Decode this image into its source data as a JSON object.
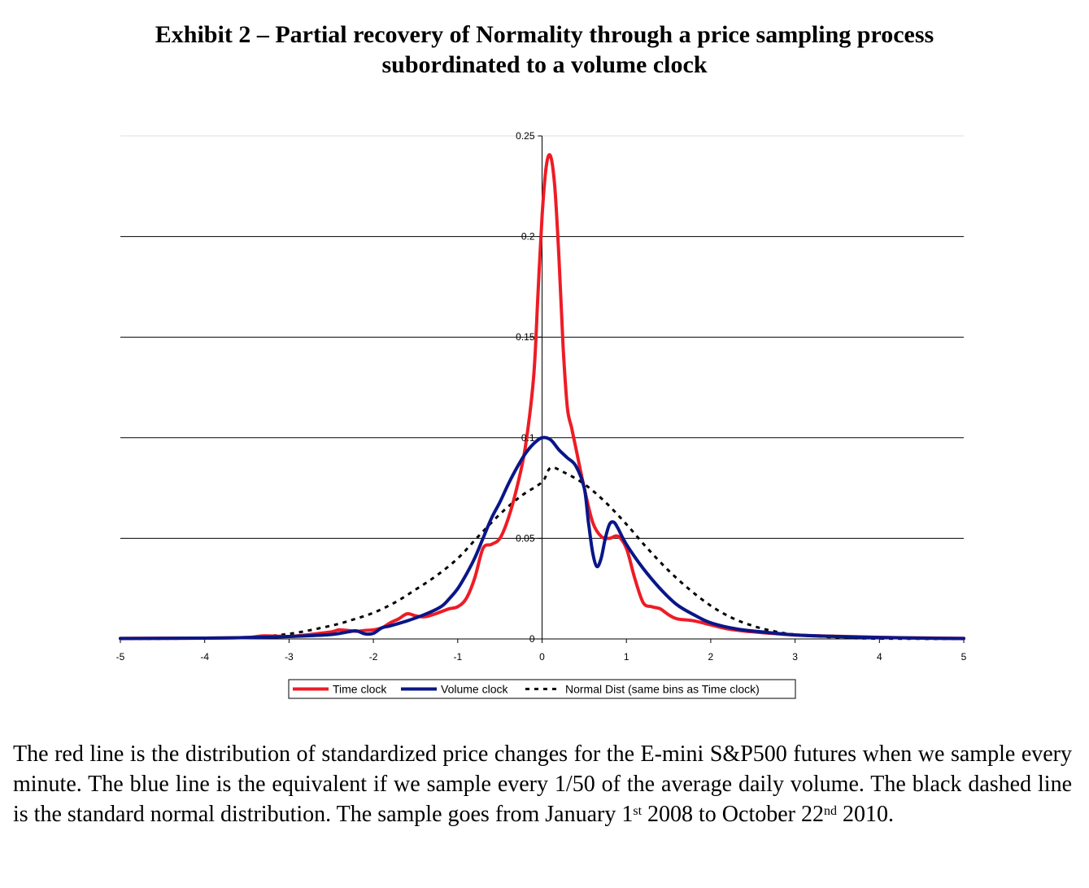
{
  "header": {
    "title_line1": "Exhibit 2 – Partial recovery of Normality through a price sampling process",
    "title_line2": "subordinated to a volume clock"
  },
  "caption": {
    "part1": "The red line is the distribution of standardized price changes for the E-mini S&P500 futures when we sample every minute. The blue line is the equivalent if we sample every 1/50 of the average daily volume. The black dashed line is the standard normal distribution. The sample goes from January 1",
    "sup1": "st",
    "part2": " 2008 to October 22",
    "sup2": "nd",
    "part3": " 2010."
  },
  "colors": {
    "time": "#ee1c25",
    "volume": "#0a1687",
    "normal": "#000000",
    "grid": "#000000"
  },
  "chart_data": {
    "type": "line",
    "xlim": [
      -5,
      5
    ],
    "ylim": [
      0,
      0.25
    ],
    "x_ticks": [
      -5,
      -4,
      -3,
      -2,
      -1,
      0,
      1,
      2,
      3,
      4,
      5
    ],
    "x_tick_labels": [
      "-5",
      "-4",
      "-3",
      "-2",
      "-1",
      "0",
      "1",
      "2",
      "3",
      "4",
      "5"
    ],
    "y_ticks": [
      0,
      0.05,
      0.1,
      0.15,
      0.2,
      0.25
    ],
    "y_tick_labels": [
      "0",
      "0.05",
      "0.1",
      "0.15",
      "0.2",
      "0.25"
    ],
    "grid": "horizontal",
    "legend_position": "bottom",
    "series": [
      {
        "name": "Time clock",
        "style": "solid",
        "color": "#ee1c25",
        "points": [
          [
            -5,
            0.0003
          ],
          [
            -4,
            0.0004
          ],
          [
            -3.5,
            0.0007
          ],
          [
            -3.3,
            0.0015
          ],
          [
            -3,
            0.0012
          ],
          [
            -2.8,
            0.002
          ],
          [
            -2.5,
            0.0035
          ],
          [
            -2.4,
            0.0045
          ],
          [
            -2.2,
            0.0038
          ],
          [
            -2.1,
            0.0042
          ],
          [
            -2,
            0.0045
          ],
          [
            -1.9,
            0.0055
          ],
          [
            -1.8,
            0.008
          ],
          [
            -1.7,
            0.01
          ],
          [
            -1.6,
            0.0125
          ],
          [
            -1.5,
            0.0115
          ],
          [
            -1.4,
            0.011
          ],
          [
            -1.3,
            0.012
          ],
          [
            -1.2,
            0.0135
          ],
          [
            -1.1,
            0.015
          ],
          [
            -1,
            0.016
          ],
          [
            -0.9,
            0.02
          ],
          [
            -0.8,
            0.03
          ],
          [
            -0.7,
            0.045
          ],
          [
            -0.6,
            0.047
          ],
          [
            -0.5,
            0.05
          ],
          [
            -0.4,
            0.06
          ],
          [
            -0.3,
            0.075
          ],
          [
            -0.2,
            0.095
          ],
          [
            -0.1,
            0.13
          ],
          [
            -0.05,
            0.17
          ],
          [
            0,
            0.21
          ],
          [
            0.05,
            0.235
          ],
          [
            0.1,
            0.24
          ],
          [
            0.15,
            0.225
          ],
          [
            0.2,
            0.19
          ],
          [
            0.25,
            0.145
          ],
          [
            0.3,
            0.115
          ],
          [
            0.35,
            0.105
          ],
          [
            0.4,
            0.095
          ],
          [
            0.5,
            0.075
          ],
          [
            0.6,
            0.058
          ],
          [
            0.7,
            0.051
          ],
          [
            0.8,
            0.05
          ],
          [
            0.9,
            0.051
          ],
          [
            1,
            0.045
          ],
          [
            1.1,
            0.03
          ],
          [
            1.2,
            0.018
          ],
          [
            1.3,
            0.016
          ],
          [
            1.4,
            0.015
          ],
          [
            1.5,
            0.012
          ],
          [
            1.6,
            0.01
          ],
          [
            1.8,
            0.009
          ],
          [
            2,
            0.007
          ],
          [
            2.2,
            0.005
          ],
          [
            2.5,
            0.0035
          ],
          [
            2.8,
            0.0025
          ],
          [
            3,
            0.002
          ],
          [
            3.3,
            0.0015
          ],
          [
            3.6,
            0.0012
          ],
          [
            4,
            0.0008
          ],
          [
            4.5,
            0.0005
          ],
          [
            5,
            0.0003
          ]
        ]
      },
      {
        "name": "Volume clock",
        "style": "solid",
        "color": "#0a1687",
        "points": [
          [
            -5,
            0.0002
          ],
          [
            -4,
            0.0004
          ],
          [
            -3.5,
            0.0007
          ],
          [
            -3,
            0.0012
          ],
          [
            -2.5,
            0.0022
          ],
          [
            -2.3,
            0.0035
          ],
          [
            -2.2,
            0.004
          ],
          [
            -2.1,
            0.0025
          ],
          [
            -2,
            0.0028
          ],
          [
            -1.9,
            0.0055
          ],
          [
            -1.8,
            0.0065
          ],
          [
            -1.6,
            0.009
          ],
          [
            -1.4,
            0.012
          ],
          [
            -1.2,
            0.016
          ],
          [
            -1.1,
            0.02
          ],
          [
            -1,
            0.025
          ],
          [
            -0.9,
            0.032
          ],
          [
            -0.8,
            0.04
          ],
          [
            -0.7,
            0.05
          ],
          [
            -0.6,
            0.06
          ],
          [
            -0.5,
            0.068
          ],
          [
            -0.4,
            0.077
          ],
          [
            -0.3,
            0.085
          ],
          [
            -0.2,
            0.092
          ],
          [
            -0.1,
            0.097
          ],
          [
            0,
            0.1
          ],
          [
            0.1,
            0.099
          ],
          [
            0.2,
            0.094
          ],
          [
            0.3,
            0.09
          ],
          [
            0.4,
            0.086
          ],
          [
            0.5,
            0.075
          ],
          [
            0.55,
            0.058
          ],
          [
            0.6,
            0.043
          ],
          [
            0.65,
            0.036
          ],
          [
            0.7,
            0.04
          ],
          [
            0.75,
            0.05
          ],
          [
            0.8,
            0.057
          ],
          [
            0.85,
            0.058
          ],
          [
            0.9,
            0.055
          ],
          [
            1,
            0.047
          ],
          [
            1.2,
            0.035
          ],
          [
            1.4,
            0.025
          ],
          [
            1.6,
            0.017
          ],
          [
            1.8,
            0.012
          ],
          [
            2,
            0.008
          ],
          [
            2.3,
            0.005
          ],
          [
            2.6,
            0.0035
          ],
          [
            3,
            0.002
          ],
          [
            3.5,
            0.0012
          ],
          [
            4,
            0.0007
          ],
          [
            4.5,
            0.0004
          ],
          [
            5,
            0.0002
          ]
        ]
      },
      {
        "name": "Normal Dist (same bins as Time clock)",
        "style": "dashed",
        "color": "#000000",
        "points": [
          [
            -5,
            0
          ],
          [
            -4,
            0.0003
          ],
          [
            -3.5,
            0.0008
          ],
          [
            -3,
            0.0025
          ],
          [
            -2.5,
            0.0066
          ],
          [
            -2.25,
            0.0095
          ],
          [
            -2,
            0.013
          ],
          [
            -1.75,
            0.018
          ],
          [
            -1.5,
            0.0245
          ],
          [
            -1.25,
            0.0315
          ],
          [
            -1,
            0.04
          ],
          [
            -0.75,
            0.0512
          ],
          [
            -0.5,
            0.062
          ],
          [
            -0.25,
            0.071
          ],
          [
            0,
            0.078
          ],
          [
            0.1,
            0.085
          ],
          [
            0.25,
            0.083
          ],
          [
            0.5,
            0.077
          ],
          [
            0.75,
            0.068
          ],
          [
            1,
            0.057
          ],
          [
            1.25,
            0.045
          ],
          [
            1.5,
            0.034
          ],
          [
            1.75,
            0.0245
          ],
          [
            2,
            0.0165
          ],
          [
            2.25,
            0.0105
          ],
          [
            2.5,
            0.0065
          ],
          [
            2.75,
            0.0038
          ],
          [
            3,
            0.0022
          ],
          [
            3.5,
            0.0007
          ],
          [
            4,
            0.0002
          ],
          [
            5,
            0
          ]
        ]
      }
    ]
  }
}
